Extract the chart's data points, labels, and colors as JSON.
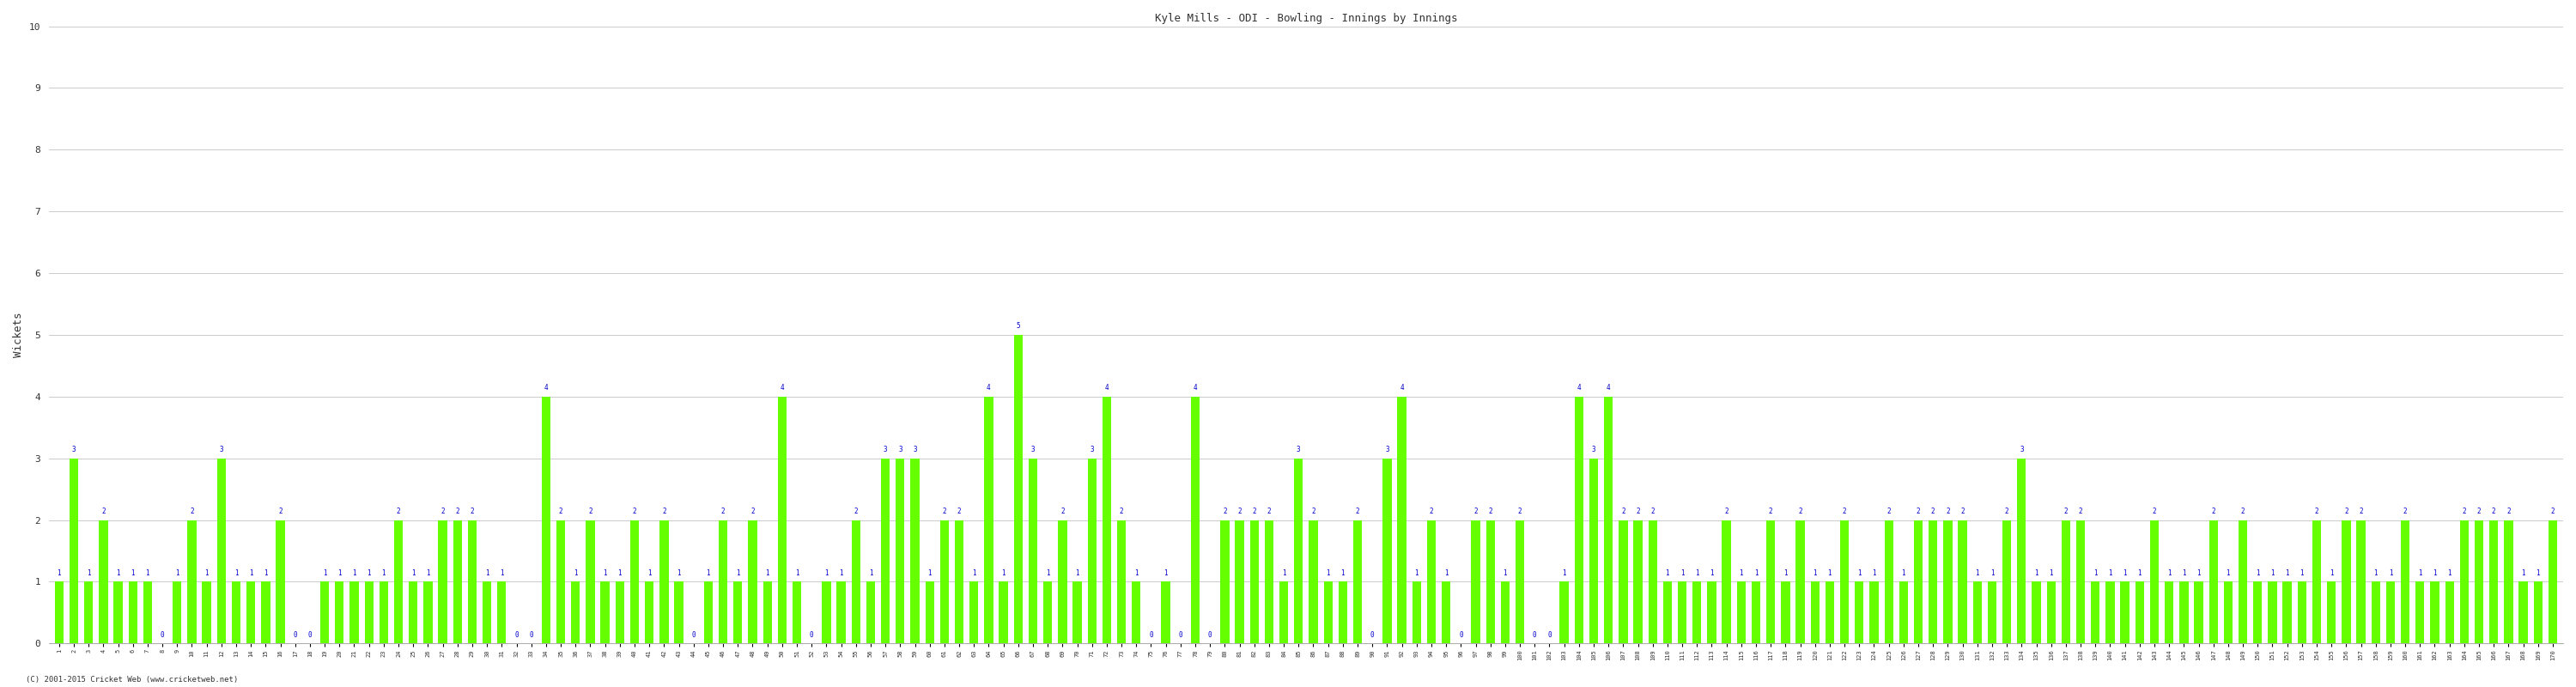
{
  "title": "Kyle Mills - ODI - Bowling - Innings by Innings",
  "ylabel": "Wickets",
  "ylim": [
    0,
    10
  ],
  "yticks": [
    0,
    1,
    2,
    3,
    4,
    5,
    6,
    7,
    8,
    9,
    10
  ],
  "bar_color": "#66FF00",
  "label_color": "#0000CC",
  "background_color": "#ffffff",
  "grid_color": "#cccccc",
  "copyright": "(C) 2001-2015 Cricket Web (www.cricketweb.net)",
  "wickets": [
    1,
    3,
    1,
    2,
    1,
    1,
    1,
    0,
    1,
    2,
    1,
    3,
    1,
    1,
    1,
    2,
    0,
    0,
    1,
    1,
    1,
    1,
    1,
    2,
    1,
    1,
    2,
    2,
    2,
    1,
    1,
    0,
    0,
    4,
    2,
    1,
    2,
    1,
    1,
    2,
    1,
    2,
    1,
    0,
    1,
    2,
    1,
    2,
    1,
    4,
    1,
    0,
    1,
    1,
    2,
    1,
    3,
    3,
    3,
    1,
    2,
    2,
    1,
    4,
    1,
    5,
    3,
    1,
    2,
    1,
    3,
    4,
    2,
    1,
    0,
    1,
    0,
    4,
    0,
    2,
    2,
    2,
    2,
    1,
    3,
    2,
    1,
    1,
    2,
    0,
    3,
    4,
    1,
    2,
    1,
    0,
    2,
    2,
    1,
    2,
    0,
    0,
    1,
    4,
    3,
    4,
    2,
    2,
    2,
    1,
    1,
    1,
    1,
    2,
    1,
    1,
    2,
    1,
    2,
    1,
    1,
    2,
    1,
    1,
    2,
    1,
    2,
    2,
    2,
    2,
    1,
    1,
    2,
    3,
    1,
    1,
    2,
    2,
    1,
    1,
    1,
    1,
    2,
    1,
    1,
    1,
    2,
    1,
    2,
    1,
    1,
    1,
    1,
    2,
    1,
    2,
    2,
    1,
    1,
    2,
    1,
    1,
    1,
    2,
    2,
    2,
    2,
    1,
    1,
    2
  ]
}
